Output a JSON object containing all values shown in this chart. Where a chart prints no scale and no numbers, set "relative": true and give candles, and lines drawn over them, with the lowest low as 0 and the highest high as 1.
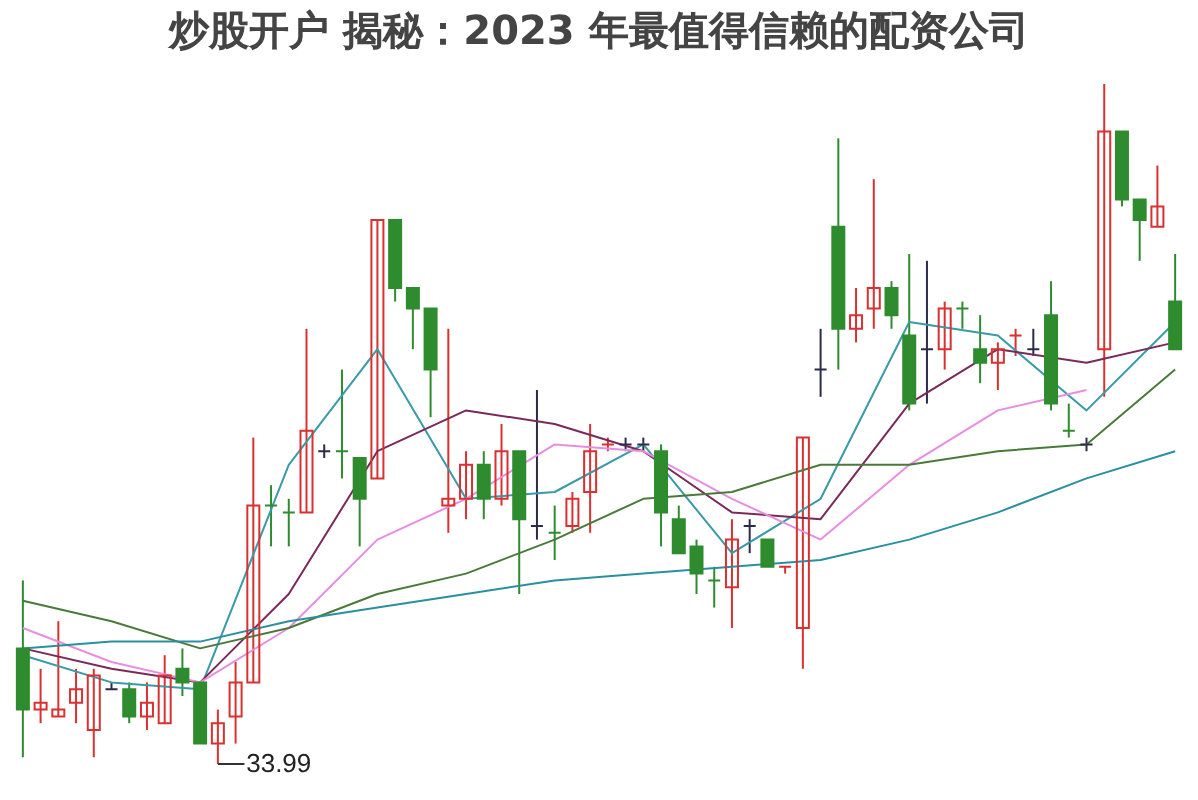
{
  "chart_data": {
    "type": "candlestick",
    "title": "炒股开户 揭秘：2023 年最值得信赖的配资公司",
    "relative": true,
    "categories": [
      null,
      null,
      null,
      null,
      null,
      null,
      null,
      null,
      null,
      null,
      null,
      null,
      null,
      null,
      null,
      null,
      null,
      null,
      null,
      null,
      null,
      null,
      null,
      null,
      null,
      null,
      null,
      null,
      null,
      null,
      null,
      null,
      null,
      null,
      null,
      null,
      null,
      null,
      null,
      null,
      null,
      null,
      null,
      null,
      null,
      null,
      null,
      null,
      null,
      null,
      null,
      null,
      null,
      null,
      null,
      null,
      null,
      null,
      null,
      null,
      null,
      null,
      null,
      null,
      null,
      null
    ],
    "ohlc": [
      [
        0.17,
        0.27,
        0.01,
        0.08
      ],
      [
        0.08,
        0.14,
        0.06,
        0.09
      ],
      [
        0.07,
        0.21,
        0.07,
        0.08
      ],
      [
        0.09,
        0.14,
        0.06,
        0.11
      ],
      [
        0.05,
        0.14,
        0.01,
        0.13
      ],
      [
        0.11,
        0.12,
        0.11,
        0.11
      ],
      [
        0.11,
        0.12,
        0.06,
        0.07
      ],
      [
        0.07,
        0.12,
        0.05,
        0.09
      ],
      [
        0.06,
        0.16,
        0.06,
        0.13
      ],
      [
        0.14,
        0.17,
        0.1,
        0.12
      ],
      [
        0.12,
        0.12,
        0.03,
        0.03
      ],
      [
        0.03,
        0.08,
        0,
        0.06
      ],
      [
        0.07,
        0.15,
        0.03,
        0.12
      ],
      [
        0.12,
        0.48,
        0.12,
        0.38
      ],
      [
        0.38,
        0.41,
        0.32,
        0.38
      ],
      [
        0.37,
        0.39,
        0.32,
        0.37
      ],
      [
        0.37,
        0.64,
        0.37,
        0.49
      ],
      [
        0.46,
        0.47,
        0.45,
        0.46
      ],
      [
        0.46,
        0.58,
        0.42,
        0.46
      ],
      [
        0.45,
        0.45,
        0.32,
        0.39
      ],
      [
        0.42,
        0.8,
        0.42,
        0.8
      ],
      [
        0.8,
        0.8,
        0.68,
        0.7
      ],
      [
        0.7,
        0.7,
        0.61,
        0.67
      ],
      [
        0.67,
        0.67,
        0.51,
        0.58
      ],
      [
        0.38,
        0.64,
        0.34,
        0.39
      ],
      [
        0.39,
        0.46,
        0.36,
        0.44
      ],
      [
        0.44,
        0.46,
        0.36,
        0.39
      ],
      [
        0.39,
        0.5,
        0.38,
        0.46
      ],
      [
        0.46,
        0.46,
        0.25,
        0.36
      ],
      [
        0.35,
        0.55,
        0.33,
        0.35
      ],
      [
        0.34,
        0.38,
        0.3,
        0.34
      ],
      [
        0.35,
        0.4,
        0.34,
        0.39
      ],
      [
        0.4,
        0.5,
        0.34,
        0.46
      ],
      [
        0.47,
        0.48,
        0.46,
        0.47
      ],
      [
        0.47,
        0.48,
        0.46,
        0.47
      ],
      [
        0.47,
        0.48,
        0.46,
        0.47
      ],
      [
        0.46,
        0.47,
        0.32,
        0.37
      ],
      [
        0.36,
        0.38,
        0.31,
        0.31
      ],
      [
        0.32,
        0.33,
        0.25,
        0.28
      ],
      [
        0.27,
        0.29,
        0.23,
        0.27
      ],
      [
        0.26,
        0.36,
        0.2,
        0.33
      ],
      [
        0.35,
        0.36,
        0.31,
        0.35
      ],
      [
        0.33,
        0.33,
        0.29,
        0.29
      ],
      [
        0.29,
        0.29,
        0.28,
        0.29
      ],
      [
        0.2,
        0.48,
        0.14,
        0.48
      ],
      [
        0.58,
        0.64,
        0.54,
        0.58
      ],
      [
        0.79,
        0.92,
        0.58,
        0.64
      ],
      [
        0.64,
        0.7,
        0.62,
        0.66
      ],
      [
        0.67,
        0.86,
        0.64,
        0.7
      ],
      [
        0.7,
        0.71,
        0.64,
        0.66
      ],
      [
        0.63,
        0.75,
        0.52,
        0.53
      ],
      [
        0.61,
        0.74,
        0.53,
        0.61
      ],
      [
        0.61,
        0.68,
        0.58,
        0.67
      ],
      [
        0.67,
        0.68,
        0.64,
        0.67
      ],
      [
        0.61,
        0.66,
        0.56,
        0.59
      ],
      [
        0.59,
        0.62,
        0.55,
        0.61
      ],
      [
        0.63,
        0.64,
        0.6,
        0.63
      ],
      [
        0.61,
        0.64,
        0.6,
        0.61
      ],
      [
        0.66,
        0.71,
        0.52,
        0.53
      ],
      [
        0.49,
        0.53,
        0.48,
        0.49
      ],
      [
        0.47,
        0.48,
        0.46,
        0.47
      ],
      [
        0.61,
        1,
        0.54,
        0.93
      ],
      [
        0.93,
        0.93,
        0.82,
        0.83
      ],
      [
        0.83,
        0.83,
        0.74,
        0.8
      ],
      [
        0.79,
        0.88,
        0.79,
        0.82
      ],
      [
        0.68,
        0.75,
        0.61,
        0.61
      ]
    ],
    "colors": [
      "#2e8b2e",
      "#d93030",
      "#d93030",
      "#d93030",
      "#d93030",
      "#2b2b4a",
      "#2e8b2e",
      "#d93030",
      "#d93030",
      "#2e8b2e",
      "#2e8b2e",
      "#d93030",
      "#d93030",
      "#d93030",
      "#2e8b2e",
      "#2e8b2e",
      "#d93030",
      "#2b2b4a",
      "#2e8b2e",
      "#2e8b2e",
      "#d93030",
      "#2e8b2e",
      "#2e8b2e",
      "#2e8b2e",
      "#d93030",
      "#d93030",
      "#2e8b2e",
      "#d93030",
      "#2e8b2e",
      "#2b2b4a",
      "#2e8b2e",
      "#d93030",
      "#d93030",
      "#d93030",
      "#2b2b4a",
      "#2b2b4a",
      "#2e8b2e",
      "#2e8b2e",
      "#2e8b2e",
      "#2e8b2e",
      "#d93030",
      "#2b2b4a",
      "#2e8b2e",
      "#d93030",
      "#d93030",
      "#2b2b4a",
      "#2e8b2e",
      "#d93030",
      "#d93030",
      "#2e8b2e",
      "#2e8b2e",
      "#2b2b4a",
      "#d93030",
      "#2e8b2e",
      "#2e8b2e",
      "#d93030",
      "#d93030",
      "#2b2b4a",
      "#2e8b2e",
      "#2e8b2e",
      "#2b2b4a",
      "#d93030",
      "#2e8b2e",
      "#2e8b2e",
      "#d93030",
      "#2e8b2e"
    ],
    "series": [
      {
        "type": "line",
        "color": "#3a9aa8",
        "values": [
          0.16,
          null,
          null,
          null,
          null,
          0.12,
          null,
          null,
          null,
          null,
          0.11,
          null,
          null,
          null,
          null,
          0.44,
          null,
          null,
          null,
          null,
          0.61,
          null,
          null,
          null,
          null,
          0.39,
          null,
          null,
          null,
          null,
          0.4,
          null,
          null,
          null,
          null,
          0.47,
          null,
          null,
          null,
          null,
          0.31,
          null,
          null,
          null,
          null,
          0.39,
          null,
          null,
          null,
          null,
          0.65,
          null,
          null,
          null,
          null,
          0.63,
          null,
          null,
          null,
          null,
          0.52,
          null,
          null,
          null,
          null,
          0.65
        ]
      },
      {
        "type": "line",
        "color": "#7a2a5a",
        "values": [
          0.17,
          null,
          null,
          null,
          null,
          0.14,
          null,
          null,
          null,
          null,
          0.12,
          null,
          null,
          null,
          null,
          0.25,
          null,
          null,
          null,
          null,
          0.46,
          null,
          null,
          null,
          null,
          0.52,
          null,
          null,
          null,
          null,
          0.5,
          null,
          null,
          null,
          null,
          0.46,
          null,
          null,
          null,
          null,
          0.37,
          null,
          null,
          null,
          null,
          0.36,
          null,
          null,
          null,
          null,
          0.53,
          null,
          null,
          null,
          null,
          0.61,
          null,
          null,
          null,
          null,
          0.59,
          null,
          null,
          null,
          null,
          0.62
        ]
      },
      {
        "type": "line",
        "color": "#e88ee0",
        "values": [
          0.2,
          null,
          null,
          null,
          null,
          0.15,
          null,
          null,
          null,
          null,
          0.12,
          null,
          null,
          null,
          null,
          0.2,
          null,
          null,
          null,
          null,
          0.33,
          null,
          null,
          null,
          null,
          0.39,
          null,
          null,
          null,
          null,
          0.47,
          null,
          null,
          null,
          null,
          0.46,
          null,
          null,
          null,
          null,
          0.39,
          null,
          null,
          null,
          null,
          0.33,
          null,
          null,
          null,
          null,
          0.44,
          null,
          null,
          null,
          null,
          0.52,
          null,
          null,
          null,
          null,
          0.55,
          null,
          null,
          null,
          null,
          null
        ]
      },
      {
        "type": "line",
        "color": "#4a7a3a",
        "values": [
          0.24,
          null,
          null,
          null,
          null,
          0.21,
          null,
          null,
          null,
          null,
          0.17,
          null,
          null,
          null,
          null,
          0.2,
          null,
          null,
          null,
          null,
          0.25,
          null,
          null,
          null,
          null,
          0.28,
          null,
          null,
          null,
          null,
          0.33,
          null,
          null,
          null,
          null,
          0.39,
          null,
          null,
          null,
          null,
          0.4,
          null,
          null,
          null,
          null,
          0.44,
          null,
          null,
          null,
          null,
          0.44,
          null,
          null,
          null,
          null,
          0.46,
          null,
          null,
          null,
          null,
          0.47,
          null,
          null,
          null,
          null,
          0.58
        ]
      },
      {
        "type": "line",
        "color": "#2a8fa0",
        "values": [
          0.17,
          null,
          null,
          null,
          null,
          0.18,
          null,
          null,
          null,
          null,
          0.18,
          null,
          null,
          null,
          null,
          0.21,
          null,
          null,
          null,
          null,
          0.23,
          null,
          null,
          null,
          null,
          0.25,
          null,
          null,
          null,
          null,
          0.27,
          null,
          null,
          null,
          null,
          0.28,
          null,
          null,
          null,
          null,
          0.29,
          null,
          null,
          null,
          null,
          0.3,
          null,
          null,
          null,
          null,
          0.33,
          null,
          null,
          null,
          null,
          0.37,
          null,
          null,
          null,
          null,
          0.42,
          null,
          null,
          null,
          null,
          0.46
        ]
      }
    ],
    "annotations": [
      "33.99"
    ]
  }
}
